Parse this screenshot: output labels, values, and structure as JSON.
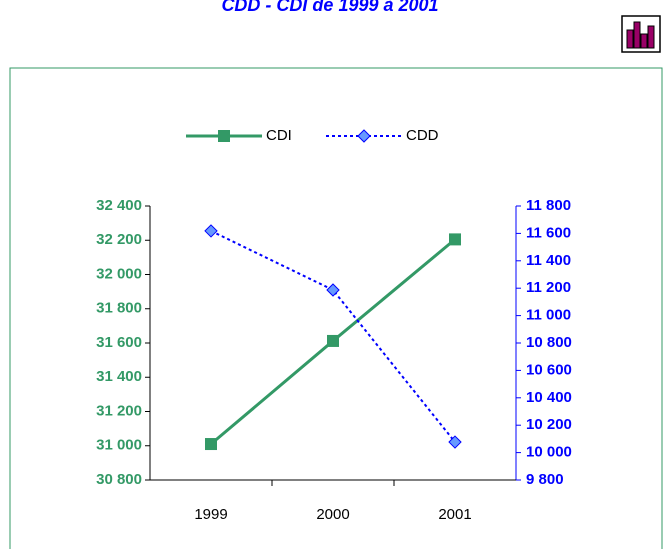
{
  "chart_data": {
    "type": "line",
    "title": "CDD - CDI de 1999 à 2001",
    "categories": [
      "1999",
      "2000",
      "2001"
    ],
    "series": [
      {
        "name": "CDI",
        "color": "#339966",
        "values": [
          31010,
          31612,
          32205
        ]
      },
      {
        "name": "CDD",
        "color": "#0000ff",
        "values": [
          11618,
          11187,
          10077
        ],
        "axis": "y2"
      }
    ],
    "ylim": [
      30800,
      32400
    ],
    "yticks": [
      {
        "value": 30800,
        "label": "30 800"
      },
      {
        "value": 31000,
        "label": "31 000"
      },
      {
        "value": 31200,
        "label": "31 200"
      },
      {
        "value": 31400,
        "label": "31 400"
      },
      {
        "value": 31600,
        "label": "31 600"
      },
      {
        "value": 31800,
        "label": "31 800"
      },
      {
        "value": 32000,
        "label": "32 000"
      },
      {
        "value": 32200,
        "label": "32 200"
      },
      {
        "value": 32400,
        "label": "32 400"
      }
    ],
    "y2lim": [
      9800,
      11800
    ],
    "y2ticks": [
      {
        "value": 9800,
        "label": "9 800"
      },
      {
        "value": 10000,
        "label": "10 000"
      },
      {
        "value": 10200,
        "label": "10 200"
      },
      {
        "value": 10400,
        "label": "10 400"
      },
      {
        "value": 10600,
        "label": "10 600"
      },
      {
        "value": 10800,
        "label": "10 800"
      },
      {
        "value": 11000,
        "label": "11 000"
      },
      {
        "value": 11200,
        "label": "11 200"
      },
      {
        "value": 11400,
        "label": "11 400"
      },
      {
        "value": 11600,
        "label": "11 600"
      },
      {
        "value": 11800,
        "label": "11 800"
      }
    ],
    "legend": "top"
  }
}
